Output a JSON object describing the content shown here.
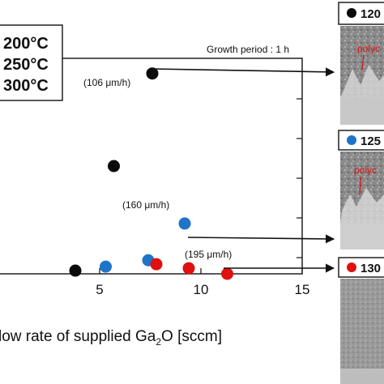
{
  "chart_data": {
    "type": "scatter",
    "title": "",
    "xlabel_part1": "low rate of supplied Ga",
    "xlabel_sub": "2",
    "xlabel_part2": "O [sccm]",
    "ylabel": "",
    "xlim": [
      0,
      15
    ],
    "ylim": [
      0,
      270
    ],
    "x_ticks": [
      5,
      10,
      15
    ],
    "x_tick_labels": [
      "5",
      "10",
      "15"
    ],
    "y_ticks": [
      0,
      50,
      100,
      150,
      200,
      250
    ],
    "grid": false,
    "legend_position": "top-left",
    "legend_entries": [
      "200°C",
      "250°C",
      "300°C"
    ],
    "colors": {
      "black": "#0a0a0a",
      "blue": "#1e74c8",
      "red": "#e01010"
    },
    "series": [
      {
        "name": "200°C",
        "color": "#0a0a0a",
        "points": [
          {
            "x": 3.8,
            "y": 4
          },
          {
            "x": 5.7,
            "y": 135
          },
          {
            "x": 7.6,
            "y": 251
          }
        ]
      },
      {
        "name": "250°C",
        "color": "#1e74c8",
        "points": [
          {
            "x": 5.3,
            "y": 9
          },
          {
            "x": 7.4,
            "y": 17
          },
          {
            "x": 9.2,
            "y": 63
          }
        ]
      },
      {
        "name": "300°C",
        "color": "#e01010",
        "points": [
          {
            "x": 7.8,
            "y": 12
          },
          {
            "x": 9.4,
            "y": 7
          },
          {
            "x": 11.3,
            "y": 0
          }
        ]
      }
    ],
    "annotations": [
      {
        "text": "(106 μm/h)",
        "x": 7.6,
        "y": 251
      },
      {
        "text": "(160 μm/h)",
        "x": 9.2,
        "y": 63
      },
      {
        "text": "(195 μm/h)",
        "x": 11.3,
        "y": 0
      }
    ],
    "note": "Growth period : 1 h"
  },
  "panels": [
    {
      "label": "120",
      "dot_color": "#0a0a0a",
      "callout": "polyc"
    },
    {
      "label": "125",
      "dot_color": "#1e74c8",
      "callout": "polyc"
    },
    {
      "label": "130",
      "dot_color": "#e01010",
      "callout": ""
    }
  ]
}
